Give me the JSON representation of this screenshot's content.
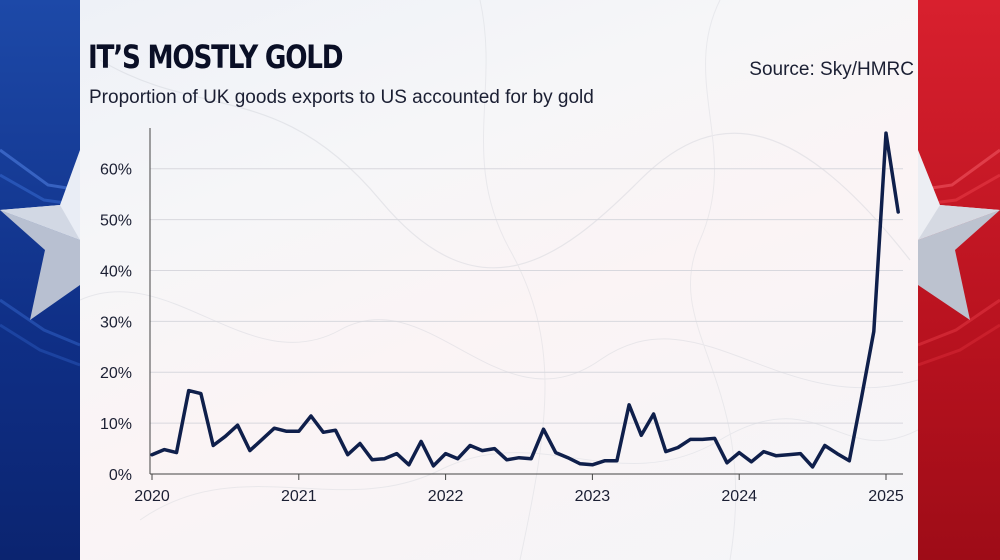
{
  "header": {
    "title": "IT’S MOSTLY GOLD",
    "subtitle": "Proportion of UK goods exports to US accounted for by gold",
    "source": "Source: Sky/HMRC"
  },
  "colors": {
    "line": "#0f1f4b",
    "axis": "#444444",
    "grid": "#d8d8de",
    "left_band": "#1d49a8",
    "right_band": "#d8202e"
  },
  "chart_data": {
    "type": "line",
    "title": "Proportion of UK goods exports to US accounted for by gold",
    "xlabel": "",
    "ylabel": "",
    "x_start": "2020-01",
    "x_interval": "month",
    "x_ticks": [
      2020,
      2021,
      2022,
      2023,
      2024,
      2025
    ],
    "x_tick_labels": [
      "2020",
      "2021",
      "2022",
      "2023",
      "2024",
      "2025"
    ],
    "xlim": [
      "2020-01",
      "2025-03"
    ],
    "ylim": [
      0,
      68
    ],
    "y_ticks": [
      0,
      10,
      20,
      30,
      40,
      50,
      60
    ],
    "y_tick_labels": [
      "0%",
      "10%",
      "20%",
      "30%",
      "40%",
      "50%",
      "60%"
    ],
    "grid": true,
    "series": [
      {
        "values": [
          3.8,
          4.8,
          4.2,
          16.4,
          15.8,
          5.6,
          7.4,
          9.6,
          4.6,
          6.8,
          9.0,
          8.4,
          8.4,
          11.4,
          8.2,
          8.6,
          3.8,
          6.0,
          2.8,
          3.0,
          4.0,
          1.8,
          6.4,
          1.6,
          4.0,
          3.0,
          5.6,
          4.6,
          5.0,
          2.8,
          3.2,
          3.0,
          8.8,
          4.2,
          3.2,
          2.0,
          1.8,
          2.6,
          2.6,
          13.6,
          7.6,
          11.8,
          4.4,
          5.2,
          6.8,
          6.8,
          7.0,
          2.2,
          4.2,
          2.4,
          4.4,
          3.6,
          3.8,
          4.0,
          1.4,
          5.6,
          4.0,
          2.6,
          15.0,
          28.0,
          67.0,
          51.5
        ]
      }
    ]
  }
}
